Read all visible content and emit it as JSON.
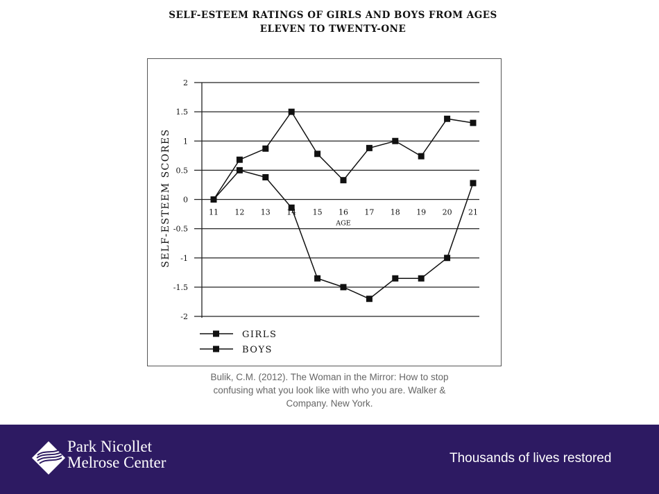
{
  "chart_data": {
    "type": "line",
    "title": "SELF-ESTEEM RATINGS OF GIRLS AND BOYS FROM AGES ELEVEN TO TWENTY-ONE",
    "xlabel": "AGE",
    "ylabel": "SELF-ESTEEM SCORES",
    "x": [
      11,
      12,
      13,
      14,
      15,
      16,
      17,
      18,
      19,
      20,
      21
    ],
    "x_tick_labels": [
      "11",
      "12",
      "13",
      "14",
      "15",
      "16",
      "17",
      "18",
      "19",
      "20",
      "21"
    ],
    "y_ticks": [
      2,
      1.5,
      1,
      0.5,
      0,
      -0.5,
      -1,
      -1.5,
      -2
    ],
    "y_tick_labels": [
      "2",
      "1.5",
      "1",
      "0.5",
      "0",
      "-0.5",
      "-1",
      "-1.5",
      "-2"
    ],
    "ylim": [
      -2,
      2
    ],
    "grid": "horizontal",
    "legend_placement": "bottom-left",
    "series": [
      {
        "name": "GIRLS",
        "values": [
          0,
          0.5,
          0.38,
          -0.14,
          -1.35,
          -1.5,
          -1.7,
          -1.35,
          -1.35,
          -1.0,
          0.28
        ]
      },
      {
        "name": "BOYS",
        "values": [
          0,
          0.68,
          0.87,
          1.5,
          0.78,
          0.33,
          0.88,
          1.0,
          0.74,
          1.38,
          1.31
        ]
      }
    ],
    "marker": "square",
    "line_color": "#111111"
  },
  "citation": "Bulik, C.M. (2012). The Woman in the Mirror: How to stop confusing what you look like with who you are. Walker & Company. New York.",
  "footer": {
    "logo_line1": "Park Nicollet",
    "logo_line2": "Melrose Center",
    "tagline": "Thousands of lives restored",
    "background_color": "#2d1a62"
  }
}
